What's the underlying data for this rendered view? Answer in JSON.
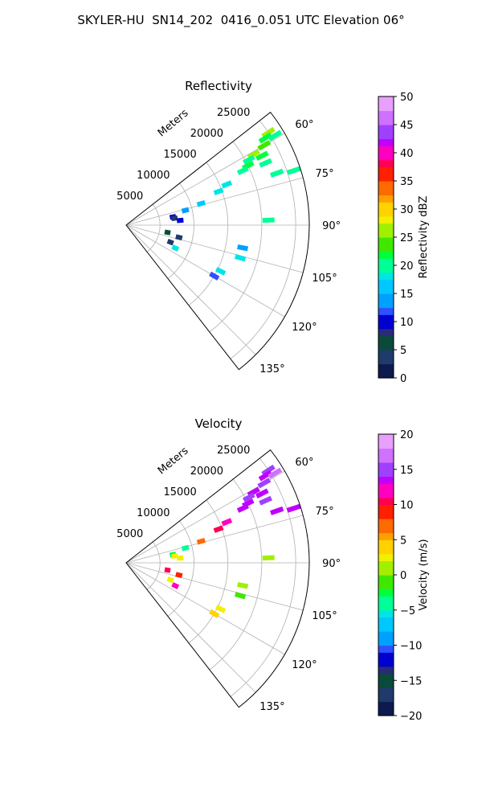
{
  "figure_title": "SKYLER-HU  SN14_202  0416_0.051 UTC Elevation 06°",
  "chart_data": [
    {
      "type": "polar-sector",
      "title": "Reflectivity",
      "radial_label": "Meters",
      "radial_ticks": [
        5000,
        10000,
        15000,
        20000,
        25000
      ],
      "radial_tick_labels": [
        "5000",
        "10000",
        "15000",
        "20000",
        "25000"
      ],
      "rlim": [
        0,
        27000
      ],
      "theta_ticks": [
        60,
        75,
        90,
        105,
        120,
        135
      ],
      "theta_tick_labels": [
        "60°",
        "75°",
        "90°",
        "105°",
        "120°",
        "135°"
      ],
      "theta_range": [
        52,
        142
      ],
      "grid": true,
      "colorbar": {
        "label": "Reflectivity dBZ",
        "ticks": [
          0,
          5,
          10,
          15,
          20,
          25,
          30,
          35,
          40,
          45,
          50
        ],
        "tick_labels": [
          "0",
          "5",
          "10",
          "15",
          "20",
          "25",
          "30",
          "35",
          "40",
          "45",
          "50"
        ],
        "range": [
          0,
          50
        ]
      },
      "points": [
        {
          "az": 57,
          "r": 25000,
          "v": 25
        },
        {
          "az": 58,
          "r": 24200,
          "v": 22
        },
        {
          "az": 59,
          "r": 25600,
          "v": 20
        },
        {
          "az": 60,
          "r": 23500,
          "v": 24
        },
        {
          "az": 61,
          "r": 21500,
          "v": 26
        },
        {
          "az": 62,
          "r": 20500,
          "v": 20
        },
        {
          "az": 63,
          "r": 22500,
          "v": 22
        },
        {
          "az": 64,
          "r": 20000,
          "v": 21
        },
        {
          "az": 65,
          "r": 19000,
          "v": 19
        },
        {
          "az": 66,
          "r": 22500,
          "v": 20
        },
        {
          "az": 68,
          "r": 16000,
          "v": 18
        },
        {
          "az": 70,
          "r": 14500,
          "v": 17
        },
        {
          "az": 71,
          "r": 23500,
          "v": 19
        },
        {
          "az": 72,
          "r": 26000,
          "v": 20
        },
        {
          "az": 74,
          "r": 11500,
          "v": 15
        },
        {
          "az": 76,
          "r": 9000,
          "v": 13
        },
        {
          "az": 80,
          "r": 7000,
          "v": 9
        },
        {
          "az": 82,
          "r": 7200,
          "v": 4
        },
        {
          "az": 85,
          "r": 8000,
          "v": 10
        },
        {
          "az": 88,
          "r": 21000,
          "v": 19
        },
        {
          "az": 100,
          "r": 6200,
          "v": 6
        },
        {
          "az": 101,
          "r": 17500,
          "v": 14
        },
        {
          "az": 103,
          "r": 8000,
          "v": 3
        },
        {
          "az": 106,
          "r": 17500,
          "v": 18
        },
        {
          "az": 111,
          "r": 7000,
          "v": 3
        },
        {
          "az": 115,
          "r": 8000,
          "v": 18
        },
        {
          "az": 116,
          "r": 15500,
          "v": 18
        },
        {
          "az": 120,
          "r": 15000,
          "v": 12
        }
      ]
    },
    {
      "type": "polar-sector",
      "title": "Velocity",
      "radial_label": "Meters",
      "radial_ticks": [
        5000,
        10000,
        15000,
        20000,
        25000
      ],
      "radial_tick_labels": [
        "5000",
        "10000",
        "15000",
        "20000",
        "25000"
      ],
      "rlim": [
        0,
        27000
      ],
      "theta_ticks": [
        60,
        75,
        90,
        105,
        120,
        135
      ],
      "theta_tick_labels": [
        "60°",
        "75°",
        "90°",
        "105°",
        "120°",
        "135°"
      ],
      "theta_range": [
        52,
        142
      ],
      "grid": true,
      "colorbar": {
        "label": "Velocity (m/s)",
        "ticks": [
          -20,
          -15,
          -10,
          -5,
          0,
          5,
          10,
          15,
          20
        ],
        "tick_labels": [
          "−20",
          "−15",
          "−10",
          "−5",
          "0",
          "5",
          "10",
          "15",
          "20"
        ],
        "range": [
          -20,
          20
        ]
      },
      "points": [
        {
          "az": 57,
          "r": 25000,
          "v": 15
        },
        {
          "az": 58,
          "r": 24200,
          "v": 14
        },
        {
          "az": 59,
          "r": 25600,
          "v": 16
        },
        {
          "az": 60,
          "r": 23500,
          "v": 15
        },
        {
          "az": 61,
          "r": 21500,
          "v": 14
        },
        {
          "az": 62,
          "r": 20500,
          "v": 15
        },
        {
          "az": 63,
          "r": 22500,
          "v": 14
        },
        {
          "az": 64,
          "r": 20000,
          "v": 13
        },
        {
          "az": 65,
          "r": 19000,
          "v": 14
        },
        {
          "az": 66,
          "r": 22500,
          "v": 15
        },
        {
          "az": 68,
          "r": 16000,
          "v": 12
        },
        {
          "az": 70,
          "r": 14500,
          "v": 10
        },
        {
          "az": 71,
          "r": 23500,
          "v": 14
        },
        {
          "az": 72,
          "r": 26000,
          "v": 13
        },
        {
          "az": 74,
          "r": 11500,
          "v": 7
        },
        {
          "az": 76,
          "r": 9000,
          "v": -4
        },
        {
          "az": 80,
          "r": 7000,
          "v": -3
        },
        {
          "az": 82,
          "r": 7200,
          "v": 2
        },
        {
          "az": 85,
          "r": 8000,
          "v": 3
        },
        {
          "az": 88,
          "r": 21000,
          "v": 1
        },
        {
          "az": 100,
          "r": 6200,
          "v": 11
        },
        {
          "az": 101,
          "r": 17500,
          "v": 1
        },
        {
          "az": 103,
          "r": 8000,
          "v": 9
        },
        {
          "az": 106,
          "r": 17500,
          "v": -1
        },
        {
          "az": 111,
          "r": 7000,
          "v": 2
        },
        {
          "az": 115,
          "r": 8000,
          "v": 12
        },
        {
          "az": 116,
          "r": 15500,
          "v": 3
        },
        {
          "az": 120,
          "r": 15000,
          "v": 4
        }
      ]
    }
  ]
}
